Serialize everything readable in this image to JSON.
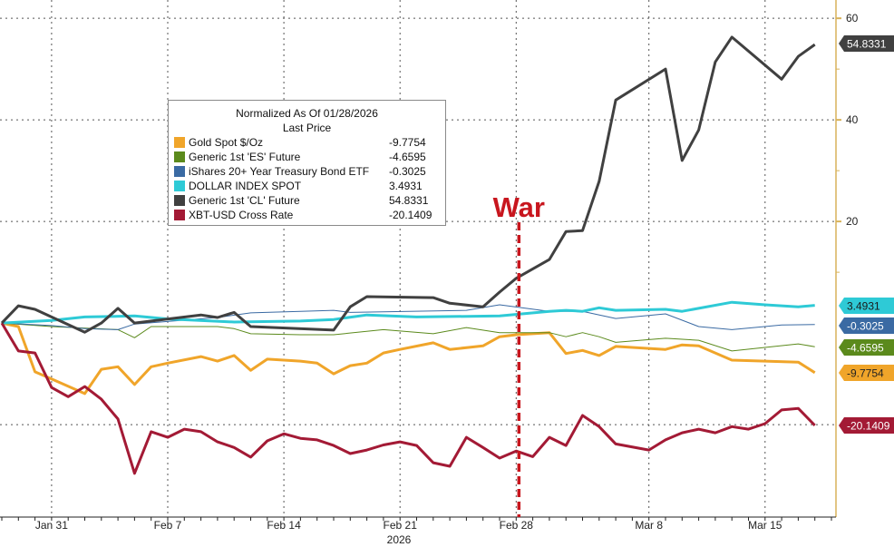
{
  "chart_data": {
    "type": "line",
    "legend": {
      "title": "Normalized As Of 01/28/2026",
      "subtitle": "Last Price",
      "placement": "upper-left-center"
    },
    "annotation": {
      "text": "War",
      "date": "2026-02-28",
      "color": "#c8161e"
    },
    "x_axis": {
      "ticks": [
        {
          "date": "2026-01-31",
          "label": "Jan 31"
        },
        {
          "date": "2026-02-07",
          "label": "Feb 7"
        },
        {
          "date": "2026-02-14",
          "label": "Feb 14"
        },
        {
          "date": "2026-02-21",
          "label": "Feb 21"
        },
        {
          "date": "2026-02-28",
          "label": "Feb 28"
        },
        {
          "date": "2026-03-08",
          "label": "Mar 8"
        },
        {
          "date": "2026-03-15",
          "label": "Mar 15"
        }
      ],
      "year_label": "2026",
      "range": [
        "2026-01-28",
        "2026-03-20"
      ]
    },
    "y_axis": {
      "position": "right",
      "ticks": [
        20,
        40,
        60
      ],
      "ylim": [
        -38.2,
        63.6
      ],
      "grid": true
    },
    "series": [
      {
        "name": "Gold Spot $/Oz",
        "last": "-9.7754",
        "color": "#f0a52a",
        "label_text_color": "#222222",
        "width": 3,
        "points": [
          [
            "2026-01-28",
            0
          ],
          [
            "2026-01-29",
            -0.7
          ],
          [
            "2026-01-30",
            -9.6
          ],
          [
            "2026-01-31",
            -11.0
          ],
          [
            "2026-02-02",
            -13.9
          ],
          [
            "2026-02-03",
            -9.1
          ],
          [
            "2026-02-04",
            -8.6
          ],
          [
            "2026-02-05",
            -12.1
          ],
          [
            "2026-02-06",
            -8.6
          ],
          [
            "2026-02-07",
            -7.9
          ],
          [
            "2026-02-09",
            -6.6
          ],
          [
            "2026-02-10",
            -7.5
          ],
          [
            "2026-02-11",
            -6.4
          ],
          [
            "2026-02-12",
            -9.3
          ],
          [
            "2026-02-13",
            -7.1
          ],
          [
            "2026-02-15",
            -7.5
          ],
          [
            "2026-02-16",
            -7.9
          ],
          [
            "2026-02-17",
            -10.0
          ],
          [
            "2026-02-18",
            -8.4
          ],
          [
            "2026-02-19",
            -7.9
          ],
          [
            "2026-02-20",
            -5.9
          ],
          [
            "2026-02-21",
            -5.2
          ],
          [
            "2026-02-23",
            -3.9
          ],
          [
            "2026-02-24",
            -5.2
          ],
          [
            "2026-02-26",
            -4.5
          ],
          [
            "2026-02-27",
            -2.7
          ],
          [
            "2026-02-28",
            -2.3
          ],
          [
            "2026-03-02",
            -1.9
          ],
          [
            "2026-03-03",
            -6.0
          ],
          [
            "2026-03-04",
            -5.4
          ],
          [
            "2026-03-05",
            -6.4
          ],
          [
            "2026-03-06",
            -4.6
          ],
          [
            "2026-03-09",
            -5.2
          ],
          [
            "2026-03-10",
            -4.3
          ],
          [
            "2026-03-11",
            -4.5
          ],
          [
            "2026-03-13",
            -7.3
          ],
          [
            "2026-03-17",
            -7.7
          ],
          [
            "2026-03-18",
            -9.7754
          ]
        ]
      },
      {
        "name": "Generic 1st 'ES' Future",
        "last": "-4.6595",
        "color": "#5b8a1c",
        "label_text_color": "#ffffff",
        "width": 1,
        "points": [
          [
            "2026-01-28",
            0
          ],
          [
            "2026-01-31",
            -0.7
          ],
          [
            "2026-02-04",
            -1.3
          ],
          [
            "2026-02-05",
            -2.9
          ],
          [
            "2026-02-06",
            -0.7
          ],
          [
            "2026-02-10",
            -0.7
          ],
          [
            "2026-02-11",
            -1.1
          ],
          [
            "2026-02-12",
            -2.1
          ],
          [
            "2026-02-15",
            -2.3
          ],
          [
            "2026-02-17",
            -2.3
          ],
          [
            "2026-02-20",
            -1.3
          ],
          [
            "2026-02-23",
            -2.1
          ],
          [
            "2026-02-25",
            -0.9
          ],
          [
            "2026-02-27",
            -1.9
          ],
          [
            "2026-03-02",
            -1.9
          ],
          [
            "2026-03-03",
            -2.7
          ],
          [
            "2026-03-04",
            -1.9
          ],
          [
            "2026-03-05",
            -2.7
          ],
          [
            "2026-03-06",
            -3.8
          ],
          [
            "2026-03-09",
            -3.0
          ],
          [
            "2026-03-11",
            -3.4
          ],
          [
            "2026-03-13",
            -5.5
          ],
          [
            "2026-03-17",
            -4.1
          ],
          [
            "2026-03-18",
            -4.6595
          ]
        ]
      },
      {
        "name": "iShares 20+ Year Treasury Bond ETF",
        "last": "-0.3025",
        "color": "#3a6aa3",
        "label_text_color": "#ffffff",
        "width": 1,
        "points": [
          [
            "2026-01-28",
            0
          ],
          [
            "2026-01-31",
            -0.5
          ],
          [
            "2026-02-02",
            -1.1
          ],
          [
            "2026-02-04",
            -1.3
          ],
          [
            "2026-02-05",
            -0.2
          ],
          [
            "2026-02-10",
            1.1
          ],
          [
            "2026-02-12",
            2.0
          ],
          [
            "2026-02-15",
            2.3
          ],
          [
            "2026-02-17",
            2.5
          ],
          [
            "2026-02-18",
            2.1
          ],
          [
            "2026-02-25",
            2.5
          ],
          [
            "2026-02-27",
            3.6
          ],
          [
            "2026-03-02",
            2.3
          ],
          [
            "2026-03-04",
            2.3
          ],
          [
            "2026-03-06",
            0.9
          ],
          [
            "2026-03-09",
            1.8
          ],
          [
            "2026-03-11",
            -0.7
          ],
          [
            "2026-03-13",
            -1.3
          ],
          [
            "2026-03-16",
            -0.4
          ],
          [
            "2026-03-18",
            -0.3025
          ]
        ]
      },
      {
        "name": "DOLLAR INDEX SPOT",
        "last": "3.4931",
        "color": "#2ecad6",
        "label_text_color": "#1a1a1a",
        "width": 3,
        "points": [
          [
            "2026-01-28",
            0
          ],
          [
            "2026-01-31",
            0.5
          ],
          [
            "2026-02-02",
            1.2
          ],
          [
            "2026-02-05",
            1.4
          ],
          [
            "2026-02-07",
            0.8
          ],
          [
            "2026-02-11",
            0.2
          ],
          [
            "2026-02-15",
            0.4
          ],
          [
            "2026-02-17",
            0.7
          ],
          [
            "2026-02-19",
            1.6
          ],
          [
            "2026-02-22",
            1.2
          ],
          [
            "2026-02-27",
            1.4
          ],
          [
            "2026-03-02",
            2.3
          ],
          [
            "2026-03-03",
            2.5
          ],
          [
            "2026-03-04",
            2.3
          ],
          [
            "2026-03-05",
            3.0
          ],
          [
            "2026-03-06",
            2.5
          ],
          [
            "2026-03-09",
            2.7
          ],
          [
            "2026-03-10",
            2.3
          ],
          [
            "2026-03-13",
            4.1
          ],
          [
            "2026-03-15",
            3.6
          ],
          [
            "2026-03-17",
            3.2
          ],
          [
            "2026-03-18",
            3.4931
          ]
        ]
      },
      {
        "name": "Generic 1st 'CL' Future",
        "last": "54.8331",
        "color": "#404040",
        "label_text_color": "#ffffff",
        "width": 3,
        "points": [
          [
            "2026-01-28",
            0
          ],
          [
            "2026-01-29",
            3.4
          ],
          [
            "2026-01-30",
            2.7
          ],
          [
            "2026-02-02",
            -1.8
          ],
          [
            "2026-02-03",
            0
          ],
          [
            "2026-02-04",
            2.9
          ],
          [
            "2026-02-05",
            0
          ],
          [
            "2026-02-09",
            1.6
          ],
          [
            "2026-02-10",
            1.1
          ],
          [
            "2026-02-11",
            2.1
          ],
          [
            "2026-02-12",
            -0.7
          ],
          [
            "2026-02-17",
            -1.4
          ],
          [
            "2026-02-18",
            3.2
          ],
          [
            "2026-02-19",
            5.2
          ],
          [
            "2026-02-23",
            5.0
          ],
          [
            "2026-02-24",
            3.9
          ],
          [
            "2026-02-26",
            3.2
          ],
          [
            "2026-02-27",
            6.1
          ],
          [
            "2026-02-28",
            8.8
          ],
          [
            "2026-03-02",
            12.5
          ],
          [
            "2026-03-03",
            18.0
          ],
          [
            "2026-03-04",
            18.2
          ],
          [
            "2026-03-05",
            27.9
          ],
          [
            "2026-03-06",
            43.9
          ],
          [
            "2026-03-09",
            50.0
          ],
          [
            "2026-03-10",
            32.0
          ],
          [
            "2026-03-11",
            38.0
          ],
          [
            "2026-03-12",
            51.4
          ],
          [
            "2026-03-13",
            56.3
          ],
          [
            "2026-03-16",
            48.0
          ],
          [
            "2026-03-17",
            52.5
          ],
          [
            "2026-03-18",
            54.8331
          ]
        ]
      },
      {
        "name": "XBT-USD Cross Rate",
        "last": "-20.1409",
        "color": "#a31a35",
        "label_text_color": "#ffffff",
        "width": 3,
        "points": [
          [
            "2026-01-28",
            0
          ],
          [
            "2026-01-29",
            -5.5
          ],
          [
            "2026-01-30",
            -5.9
          ],
          [
            "2026-01-31",
            -12.7
          ],
          [
            "2026-02-01",
            -14.5
          ],
          [
            "2026-02-02",
            -12.5
          ],
          [
            "2026-02-03",
            -15.0
          ],
          [
            "2026-02-04",
            -18.9
          ],
          [
            "2026-02-05",
            -29.6
          ],
          [
            "2026-02-06",
            -21.4
          ],
          [
            "2026-02-07",
            -22.5
          ],
          [
            "2026-02-08",
            -20.9
          ],
          [
            "2026-02-09",
            -21.4
          ],
          [
            "2026-02-10",
            -23.4
          ],
          [
            "2026-02-11",
            -24.5
          ],
          [
            "2026-02-12",
            -26.4
          ],
          [
            "2026-02-13",
            -23.2
          ],
          [
            "2026-02-14",
            -21.8
          ],
          [
            "2026-02-15",
            -22.7
          ],
          [
            "2026-02-16",
            -23.0
          ],
          [
            "2026-02-17",
            -24.1
          ],
          [
            "2026-02-18",
            -25.7
          ],
          [
            "2026-02-19",
            -25.0
          ],
          [
            "2026-02-20",
            -24.0
          ],
          [
            "2026-02-21",
            -23.4
          ],
          [
            "2026-02-22",
            -24.1
          ],
          [
            "2026-02-23",
            -27.5
          ],
          [
            "2026-02-24",
            -28.2
          ],
          [
            "2026-02-25",
            -22.5
          ],
          [
            "2026-02-26",
            -24.5
          ],
          [
            "2026-02-27",
            -26.6
          ],
          [
            "2026-02-28",
            -25.2
          ],
          [
            "2026-03-01",
            -26.3
          ],
          [
            "2026-03-02",
            -22.5
          ],
          [
            "2026-03-03",
            -24.1
          ],
          [
            "2026-03-04",
            -18.2
          ],
          [
            "2026-03-05",
            -20.4
          ],
          [
            "2026-03-06",
            -23.8
          ],
          [
            "2026-03-08",
            -25.0
          ],
          [
            "2026-03-09",
            -23.0
          ],
          [
            "2026-03-10",
            -21.6
          ],
          [
            "2026-03-11",
            -20.9
          ],
          [
            "2026-03-12",
            -21.6
          ],
          [
            "2026-03-13",
            -20.4
          ],
          [
            "2026-03-14",
            -20.9
          ],
          [
            "2026-03-15",
            -19.8
          ],
          [
            "2026-03-16",
            -17.1
          ],
          [
            "2026-03-17",
            -16.8
          ],
          [
            "2026-03-18",
            -20.1409
          ]
        ]
      }
    ]
  }
}
